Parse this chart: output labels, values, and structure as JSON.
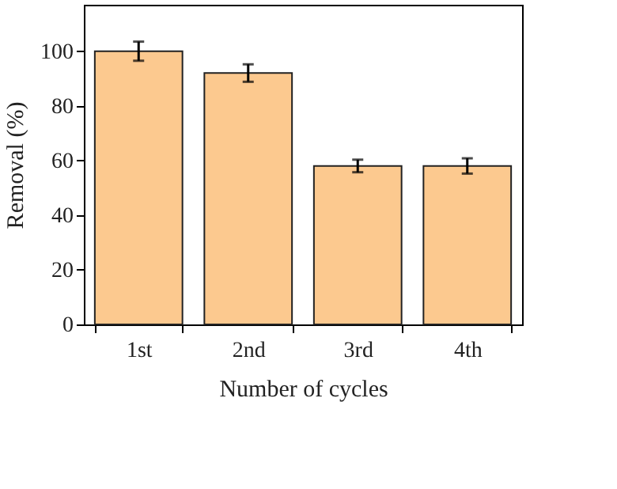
{
  "chart_data": {
    "type": "bar",
    "xlabel": "Number of cycles",
    "ylabel": "Removal (%)",
    "categories": [
      "1st",
      "2nd",
      "3rd",
      "4th"
    ],
    "values": [
      100,
      92,
      58,
      58
    ],
    "errors": [
      3.5,
      3.2,
      2.3,
      2.8
    ],
    "color": "#fcc98f",
    "ylim": [
      0,
      117
    ],
    "yticks": [
      0,
      20,
      40,
      60,
      80,
      100
    ],
    "grid": false
  }
}
